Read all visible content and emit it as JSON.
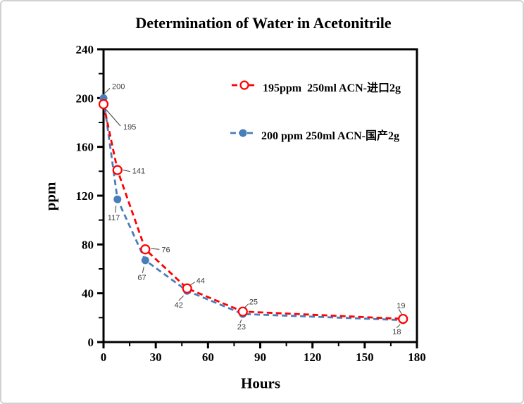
{
  "chart_data": {
    "type": "line",
    "title": "Determination of Water in Acetonitrile",
    "xlabel": "Hours",
    "ylabel": "ppm",
    "xlim": [
      0,
      180
    ],
    "ylim": [
      0,
      240
    ],
    "grid": false,
    "legend_position": "inside-top-center",
    "x_ticks": [
      0,
      30,
      60,
      90,
      120,
      150,
      180
    ],
    "x_tick_labels": [
      "0",
      "30",
      "60",
      "90",
      "120",
      "150",
      "180"
    ],
    "x_minor_ticks": [
      15,
      45,
      75,
      105,
      135,
      165
    ],
    "y_ticks": [
      0,
      40,
      80,
      120,
      160,
      200,
      240
    ],
    "y_tick_labels": [
      "0",
      "40",
      "80",
      "120",
      "160",
      "200",
      "240"
    ],
    "y_minor_ticks": [
      20,
      60,
      100,
      140,
      180,
      220
    ],
    "x": [
      0,
      8,
      24,
      48,
      80,
      172
    ],
    "series": [
      {
        "name": "195ppm  250ml ACN-进口2g",
        "color": "#ff0000",
        "marker": "open-circle",
        "line_style": "dashed",
        "values": [
          195,
          141,
          76,
          44,
          25,
          19
        ],
        "point_labels": [
          "195",
          "141",
          "76",
          "44",
          "25",
          "19"
        ]
      },
      {
        "name": "200 ppm 250ml ACN-国产2g",
        "color": "#4a7ebb",
        "marker": "filled-circle",
        "line_style": "dashed",
        "values": [
          200,
          117,
          67,
          42,
          23,
          18
        ],
        "point_labels": [
          "200",
          "117",
          "67",
          "42",
          "23",
          "18"
        ]
      }
    ]
  }
}
